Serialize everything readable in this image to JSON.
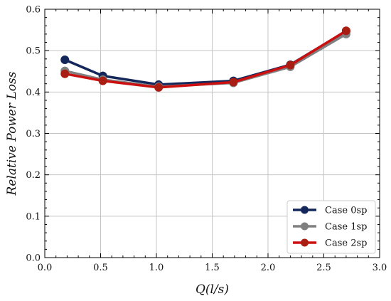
{
  "chart_data": {
    "type": "line",
    "xlabel": "Q(l/s)",
    "ylabel": "Relative Power Loss",
    "xlim": [
      0.0,
      3.0
    ],
    "ylim": [
      0.0,
      0.6
    ],
    "xticks": [
      0.0,
      0.5,
      1.0,
      1.5,
      2.0,
      2.5,
      3.0
    ],
    "xtick_labels": [
      "0.0",
      "0.5",
      "1.0",
      "1.5",
      "2.0",
      "2.5",
      "3.0"
    ],
    "yticks": [
      0.0,
      0.1,
      0.2,
      0.3,
      0.4,
      0.5,
      0.6
    ],
    "ytick_labels": [
      "0.0",
      "0.1",
      "0.2",
      "0.3",
      "0.4",
      "0.5",
      "0.6"
    ],
    "grid": true,
    "legend_position": "bottom-right",
    "series": [
      {
        "name": "Case 0sp",
        "color": "#14275a",
        "x": [
          0.18,
          0.52,
          1.02,
          1.69,
          2.2,
          2.7
        ],
        "y": [
          0.478,
          0.439,
          0.418,
          0.427,
          0.466,
          0.547
        ]
      },
      {
        "name": "Case 1sp",
        "color": "#808080",
        "x": [
          0.18,
          0.52,
          1.02,
          1.69,
          2.2,
          2.7
        ],
        "y": [
          0.451,
          0.43,
          0.413,
          0.422,
          0.461,
          0.54
        ]
      },
      {
        "name": "Case 2sp",
        "color": "#cc1010",
        "marker_color": "#a81e12",
        "x": [
          0.18,
          0.52,
          1.02,
          1.69,
          2.2,
          2.7
        ],
        "y": [
          0.444,
          0.427,
          0.411,
          0.424,
          0.465,
          0.548
        ]
      }
    ]
  }
}
